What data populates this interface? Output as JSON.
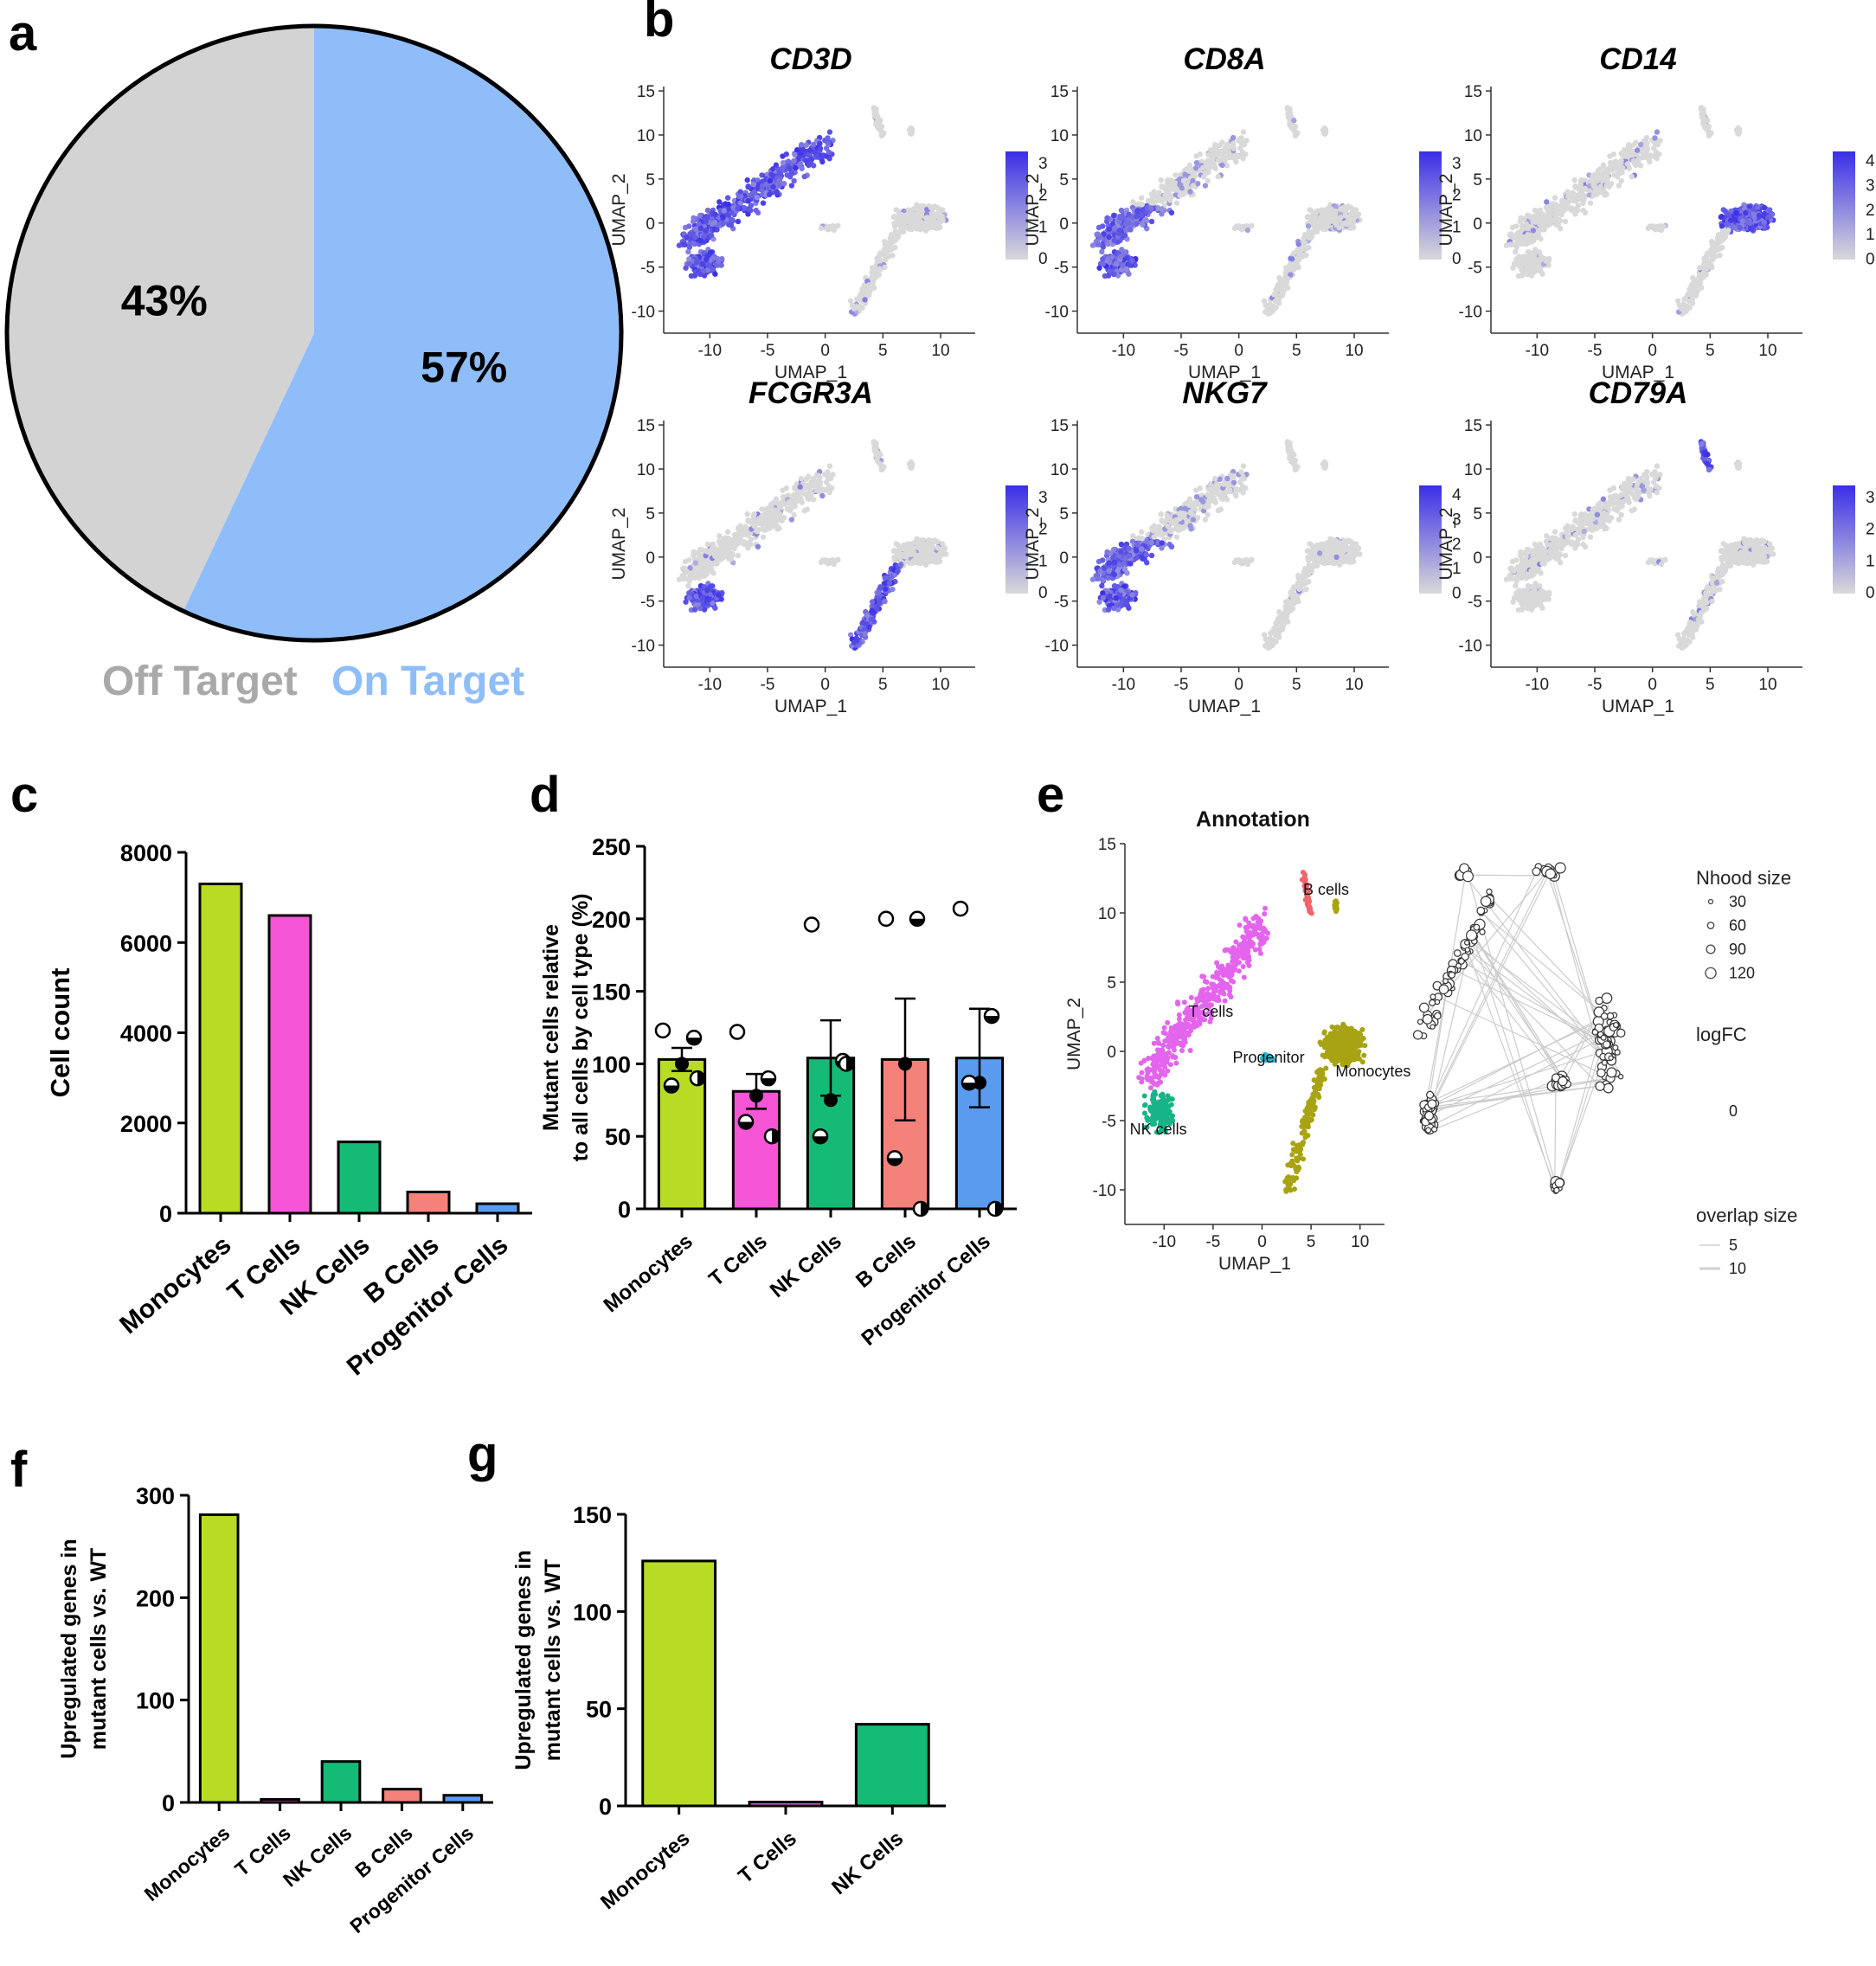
{
  "panels": {
    "a": "a",
    "b": "b",
    "c": "c",
    "d": "d",
    "e": "e",
    "f": "f",
    "g": "g"
  },
  "chart_data": [
    {
      "id": "a",
      "type": "pie",
      "slices": [
        {
          "label": "Off Target",
          "value": 43,
          "text": "43%",
          "color": "#d3d3d3"
        },
        {
          "label": "On Target",
          "value": 57,
          "text": "57%",
          "color": "#8fbdf9"
        }
      ],
      "legend_colors": {
        "off": "#a9a9a9",
        "on": "#8fbdf9"
      }
    },
    {
      "id": "b",
      "type": "scatter",
      "kind": "umap-feature-plots",
      "xlabel": "UMAP_1",
      "ylabel": "UMAP_2",
      "xticks": [
        -10,
        -5,
        0,
        5,
        10
      ],
      "yticks": [
        15,
        10,
        5,
        0,
        -5,
        -10
      ],
      "xlim": [
        -14,
        13
      ],
      "ylim": [
        -12.5,
        15.5
      ],
      "genes": [
        {
          "name": "CD3D",
          "scale": [
            0,
            1,
            2,
            3
          ],
          "expressed_in": [
            "tcells",
            "nk"
          ]
        },
        {
          "name": "CD8A",
          "scale": [
            0,
            1,
            2,
            3
          ],
          "expressed_in": [
            "tcells_lower",
            "nk"
          ]
        },
        {
          "name": "CD14",
          "scale": [
            0,
            1,
            2,
            3,
            4
          ],
          "expressed_in": [
            "monocytes"
          ]
        },
        {
          "name": "FCGR3A",
          "scale": [
            0,
            1,
            2,
            3
          ],
          "expressed_in": [
            "nk",
            "mono_tail"
          ]
        },
        {
          "name": "NKG7",
          "scale": [
            0,
            1,
            2,
            3,
            4
          ],
          "expressed_in": [
            "nk",
            "tcells_lower"
          ]
        },
        {
          "name": "CD79A",
          "scale": [
            0,
            1,
            2,
            3
          ],
          "expressed_in": [
            "bcells"
          ]
        }
      ],
      "colors": {
        "low": "#d9d9d9",
        "high": "#3a2ee8"
      }
    },
    {
      "id": "c",
      "type": "bar",
      "ylabel": "Cell count",
      "categories": [
        "Monocytes",
        "T Cells",
        "NK Cells",
        "B Cells",
        "Progenitor Cells"
      ],
      "values": [
        7300,
        6600,
        1580,
        470,
        210
      ],
      "ylim": [
        0,
        8000
      ],
      "yticks": [
        0,
        2000,
        4000,
        6000,
        8000
      ],
      "colors": [
        "#b8dc24",
        "#f655d5",
        "#13bb77",
        "#f5827a",
        "#5a9bef"
      ]
    },
    {
      "id": "d",
      "type": "bar",
      "ylabel_lines": [
        "Mutant cells relative",
        "to all cells by cell type (%)"
      ],
      "categories": [
        "Monocytes",
        "T Cells",
        "NK Cells",
        "B Cells",
        "Progenitor Cells"
      ],
      "values": [
        103,
        81,
        104,
        103,
        104
      ],
      "errors": [
        8,
        12,
        26,
        42,
        34
      ],
      "points": [
        [
          123,
          118,
          100,
          85,
          90
        ],
        [
          122,
          90,
          78,
          60,
          50
        ],
        [
          196,
          102,
          75,
          50,
          100
        ],
        [
          200,
          200,
          100,
          35,
          0
        ],
        [
          207,
          133,
          87,
          87,
          0
        ]
      ],
      "ylim": [
        0,
        250
      ],
      "yticks": [
        0,
        50,
        100,
        150,
        200,
        250
      ],
      "colors": [
        "#b8dc24",
        "#f655d5",
        "#13bb77",
        "#f5827a",
        "#5a9bef"
      ]
    },
    {
      "id": "e",
      "type": "scatter",
      "title": "Annotation",
      "xlabel": "UMAP_1",
      "ylabel": "UMAP_2",
      "xticks": [
        -10,
        -5,
        0,
        5,
        10
      ],
      "yticks": [
        15,
        10,
        5,
        0,
        -5,
        -10
      ],
      "xlim": [
        -14,
        12.5
      ],
      "ylim": [
        -12.5,
        15
      ],
      "clusters": [
        {
          "label": "B cells",
          "color": "#f0646a"
        },
        {
          "label": "T cells",
          "color": "#e464ee"
        },
        {
          "label": "Progenitor",
          "color": "#22b8d8"
        },
        {
          "label": "Monocytes",
          "color": "#a8a312"
        },
        {
          "label": "NK cells",
          "color": "#17b488"
        }
      ],
      "legend": {
        "nhood_title": "Nhood size",
        "nhood_values": [
          "30",
          "60",
          "90",
          "120"
        ],
        "logfc_title": "logFC",
        "logfc_value": "0",
        "overlap_title": "overlap size",
        "overlap_values": [
          "5",
          "10"
        ]
      }
    },
    {
      "id": "f",
      "type": "bar",
      "ylabel_lines": [
        "Upregulated genes in",
        "mutant cells vs. WT"
      ],
      "categories": [
        "Monocytes",
        "T Cells",
        "NK Cells",
        "B Cells",
        "Progenitor Cells"
      ],
      "values": [
        281,
        3,
        40,
        13,
        7
      ],
      "ylim": [
        0,
        300
      ],
      "yticks": [
        0,
        100,
        200,
        300
      ],
      "colors": [
        "#b8dc24",
        "#f655d5",
        "#13bb77",
        "#f5827a",
        "#5a9bef"
      ]
    },
    {
      "id": "g",
      "type": "bar",
      "ylabel_lines": [
        "Upregulated genes in",
        "mutant cells vs. WT"
      ],
      "categories": [
        "Monocytes",
        "T Cells",
        "NK Cells"
      ],
      "values": [
        126,
        2,
        42
      ],
      "ylim": [
        0,
        150
      ],
      "yticks": [
        0,
        50,
        100,
        150
      ],
      "colors": [
        "#b8dc24",
        "#f655d5",
        "#13bb77"
      ]
    }
  ]
}
